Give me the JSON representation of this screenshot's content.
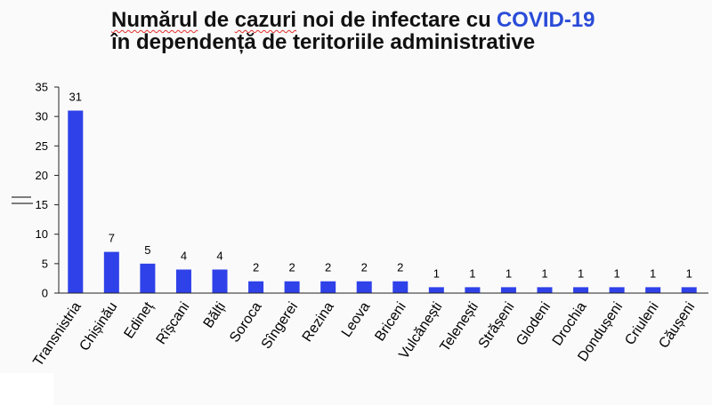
{
  "colors": {
    "bar": "#2f41e8",
    "title_highlight": "#2a4bd8",
    "spellcheck_underline": "#e0302a",
    "axis": "#222222"
  },
  "chart_data": {
    "type": "bar",
    "title": {
      "line1": [
        "Numărul",
        "de",
        "cazuri",
        "noi de infectare cu"
      ],
      "highlight": "COVID-19",
      "line2": "în dependență de teritoriile administrative"
    },
    "categories": [
      "Transnistria",
      "Chișinău",
      "Edineț",
      "Rîșcani",
      "Bălți",
      "Soroca",
      "Sîngerei",
      "Rezina",
      "Leova",
      "Briceni",
      "Vulcănești",
      "Telenești",
      "Strășeni",
      "Glodeni",
      "Drochia",
      "Dondușeni",
      "Criuleni",
      "Căușeni"
    ],
    "values": [
      31,
      7,
      5,
      4,
      4,
      2,
      2,
      2,
      2,
      2,
      1,
      1,
      1,
      1,
      1,
      1,
      1,
      1
    ],
    "ylim": [
      0,
      35
    ],
    "yticks": [
      0,
      5,
      10,
      15,
      20,
      25,
      30,
      35
    ],
    "grid": false,
    "legend": "none",
    "data_labels": true
  }
}
